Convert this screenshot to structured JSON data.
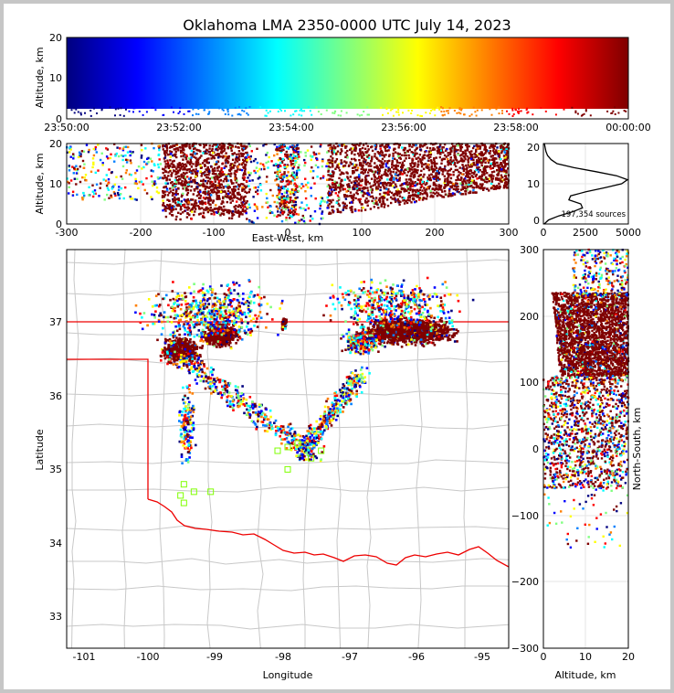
{
  "title": "Oklahoma LMA 2350-0000 UTC July 14, 2023",
  "colors": {
    "panel_border": "#000000",
    "grid": "#e6e6e6",
    "state_border": "#ee0000",
    "county": "#c8c8c8",
    "highlight_box": "#7fff00",
    "colormap": [
      "#00007f",
      "#0000ff",
      "#007fff",
      "#00ffff",
      "#7fff7f",
      "#ffff00",
      "#ff7f00",
      "#ff0000",
      "#7f0000"
    ]
  },
  "time_panel": {
    "ylabel": "Altitude, km",
    "y_ticks": [
      "0",
      "10",
      "20"
    ],
    "x_ticks": [
      "23:50:00",
      "23:52:00",
      "23:54:00",
      "23:56:00",
      "23:58:00",
      "00:00:00"
    ]
  },
  "ew_panel": {
    "ylabel": "Altitude, km",
    "xlabel": "East-West, km",
    "y_ticks": [
      "0",
      "10",
      "20"
    ],
    "x_ticks": [
      "-300",
      "-200",
      "-100",
      "0",
      "100",
      "200",
      "300"
    ]
  },
  "hist_panel": {
    "y_ticks": [
      "0",
      "10",
      "20"
    ],
    "x_ticks": [
      "0",
      "2500",
      "5000"
    ],
    "annotation": "197,354 sources"
  },
  "map_panel": {
    "xlabel": "Longitude",
    "ylabel": "Latitude",
    "x_ticks": [
      "-101",
      "-100",
      "-99",
      "-98",
      "-97",
      "-96",
      "-95"
    ],
    "y_ticks": [
      "33",
      "34",
      "35",
      "36",
      "37"
    ]
  },
  "ns_panel": {
    "xlabel": "Altitude, km",
    "ylabel": "North-South, km",
    "x_ticks": [
      "0",
      "10",
      "20"
    ],
    "y_ticks": [
      "300",
      "200",
      "100",
      "0",
      "−100",
      "−200",
      "−300"
    ]
  },
  "chart_data": [
    {
      "type": "scatter",
      "panel": "time-altitude",
      "xlim": [
        "23:50:00",
        "00:00:00"
      ],
      "ylim": [
        0,
        20
      ],
      "color_by": "time",
      "note_shape": "dense sources 2-20 km across the whole period"
    },
    {
      "type": "scatter",
      "panel": "east-west vs altitude",
      "xlim": [
        -300,
        300
      ],
      "ylim": [
        0,
        20
      ],
      "clusters_km": [
        [
          -170,
          -55
        ],
        [
          -15,
          15
        ],
        [
          55,
          300
        ]
      ]
    },
    {
      "type": "line",
      "panel": "altitude histogram",
      "xlim": [
        0,
        5000
      ],
      "ylim": [
        0,
        20
      ],
      "altitude_km": [
        0,
        1,
        2,
        3,
        4,
        5,
        6,
        7,
        8,
        9,
        10,
        11,
        12,
        13,
        14,
        15,
        16,
        17,
        18,
        19,
        20
      ],
      "counts": [
        50,
        300,
        900,
        1700,
        2300,
        2200,
        1500,
        1600,
        2500,
        3600,
        4600,
        4950,
        4300,
        3100,
        1800,
        800,
        450,
        250,
        150,
        100,
        60
      ]
    },
    {
      "type": "scatter",
      "panel": "plan view map",
      "xlim": [
        -101.2,
        -94.6
      ],
      "ylim": [
        32.6,
        37.95
      ],
      "total_sources": 197354
    },
    {
      "type": "scatter",
      "panel": "north-south vs altitude",
      "xlim": [
        0,
        20
      ],
      "ylim": [
        -300,
        300
      ]
    }
  ]
}
